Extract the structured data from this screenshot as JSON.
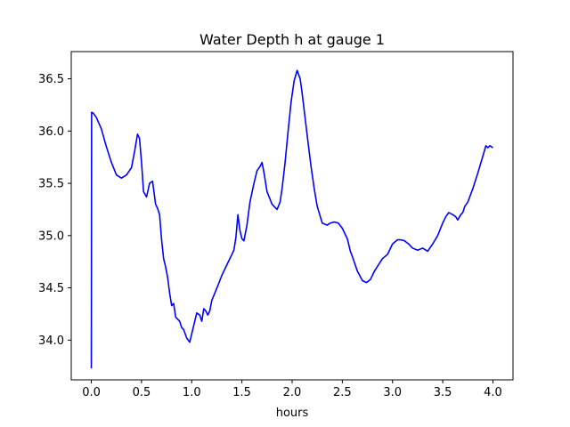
{
  "chart_data": {
    "type": "line",
    "title": "Water Depth h at gauge 1",
    "xlabel": "hours",
    "ylabel": "",
    "xlim": [
      -0.2,
      4.2
    ],
    "ylim": [
      33.62,
      36.76
    ],
    "xticks": [
      0.0,
      0.5,
      1.0,
      1.5,
      2.0,
      2.5,
      3.0,
      3.5,
      4.0
    ],
    "xtick_labels": [
      "0.0",
      "0.5",
      "1.0",
      "1.5",
      "2.0",
      "2.5",
      "3.0",
      "3.5",
      "4.0"
    ],
    "yticks": [
      34.0,
      34.5,
      35.0,
      35.5,
      36.0,
      36.5
    ],
    "ytick_labels": [
      "34.0",
      "34.5",
      "35.0",
      "35.5",
      "36.0",
      "36.5"
    ],
    "grid": false,
    "series": [
      {
        "color": "#0000ff",
        "x": [
          0.0,
          0.003,
          0.02,
          0.05,
          0.1,
          0.15,
          0.2,
          0.25,
          0.3,
          0.35,
          0.4,
          0.43,
          0.46,
          0.48,
          0.5,
          0.52,
          0.55,
          0.58,
          0.61,
          0.64,
          0.66,
          0.68,
          0.7,
          0.72,
          0.74,
          0.76,
          0.78,
          0.8,
          0.82,
          0.84,
          0.86,
          0.88,
          0.9,
          0.92,
          0.95,
          0.98,
          1.0,
          1.02,
          1.05,
          1.08,
          1.1,
          1.12,
          1.14,
          1.16,
          1.18,
          1.2,
          1.23,
          1.26,
          1.3,
          1.35,
          1.38,
          1.42,
          1.44,
          1.46,
          1.48,
          1.5,
          1.52,
          1.55,
          1.58,
          1.62,
          1.65,
          1.68,
          1.7,
          1.72,
          1.75,
          1.8,
          1.85,
          1.88,
          1.9,
          1.93,
          1.96,
          1.99,
          2.02,
          2.05,
          2.08,
          2.1,
          2.13,
          2.16,
          2.19,
          2.22,
          2.25,
          2.3,
          2.35,
          2.38,
          2.42,
          2.46,
          2.5,
          2.55,
          2.58,
          2.6,
          2.65,
          2.7,
          2.74,
          2.78,
          2.82,
          2.86,
          2.9,
          2.95,
          3.0,
          3.05,
          3.08,
          3.12,
          3.16,
          3.2,
          3.25,
          3.3,
          3.35,
          3.4,
          3.45,
          3.5,
          3.53,
          3.56,
          3.6,
          3.63,
          3.65,
          3.68,
          3.7,
          3.72,
          3.75,
          3.8,
          3.85,
          3.9,
          3.93,
          3.95,
          3.97,
          4.0
        ],
        "y": [
          33.73,
          36.18,
          36.17,
          36.13,
          36.02,
          35.85,
          35.7,
          35.58,
          35.55,
          35.58,
          35.65,
          35.8,
          35.97,
          35.93,
          35.7,
          35.42,
          35.37,
          35.5,
          35.52,
          35.3,
          35.26,
          35.2,
          34.96,
          34.78,
          34.7,
          34.6,
          34.45,
          34.33,
          34.35,
          34.22,
          34.2,
          34.18,
          34.12,
          34.1,
          34.02,
          33.98,
          34.06,
          34.14,
          34.26,
          34.24,
          34.18,
          34.3,
          34.28,
          34.24,
          34.28,
          34.38,
          34.45,
          34.52,
          34.62,
          34.72,
          34.78,
          34.86,
          34.98,
          35.2,
          35.05,
          34.97,
          34.95,
          35.1,
          35.32,
          35.5,
          35.62,
          35.66,
          35.7,
          35.6,
          35.42,
          35.3,
          35.25,
          35.32,
          35.45,
          35.7,
          36.0,
          36.28,
          36.48,
          36.58,
          36.5,
          36.36,
          36.12,
          35.88,
          35.65,
          35.45,
          35.28,
          35.12,
          35.1,
          35.12,
          35.13,
          35.12,
          35.07,
          34.97,
          34.85,
          34.8,
          34.66,
          34.57,
          34.55,
          34.58,
          34.66,
          34.72,
          34.78,
          34.82,
          34.92,
          34.96,
          34.96,
          34.95,
          34.92,
          34.88,
          34.86,
          34.88,
          34.85,
          34.92,
          35.0,
          35.12,
          35.18,
          35.22,
          35.2,
          35.18,
          35.15,
          35.2,
          35.22,
          35.28,
          35.32,
          35.45,
          35.6,
          35.76,
          35.86,
          35.84,
          35.86,
          35.84
        ]
      }
    ]
  }
}
